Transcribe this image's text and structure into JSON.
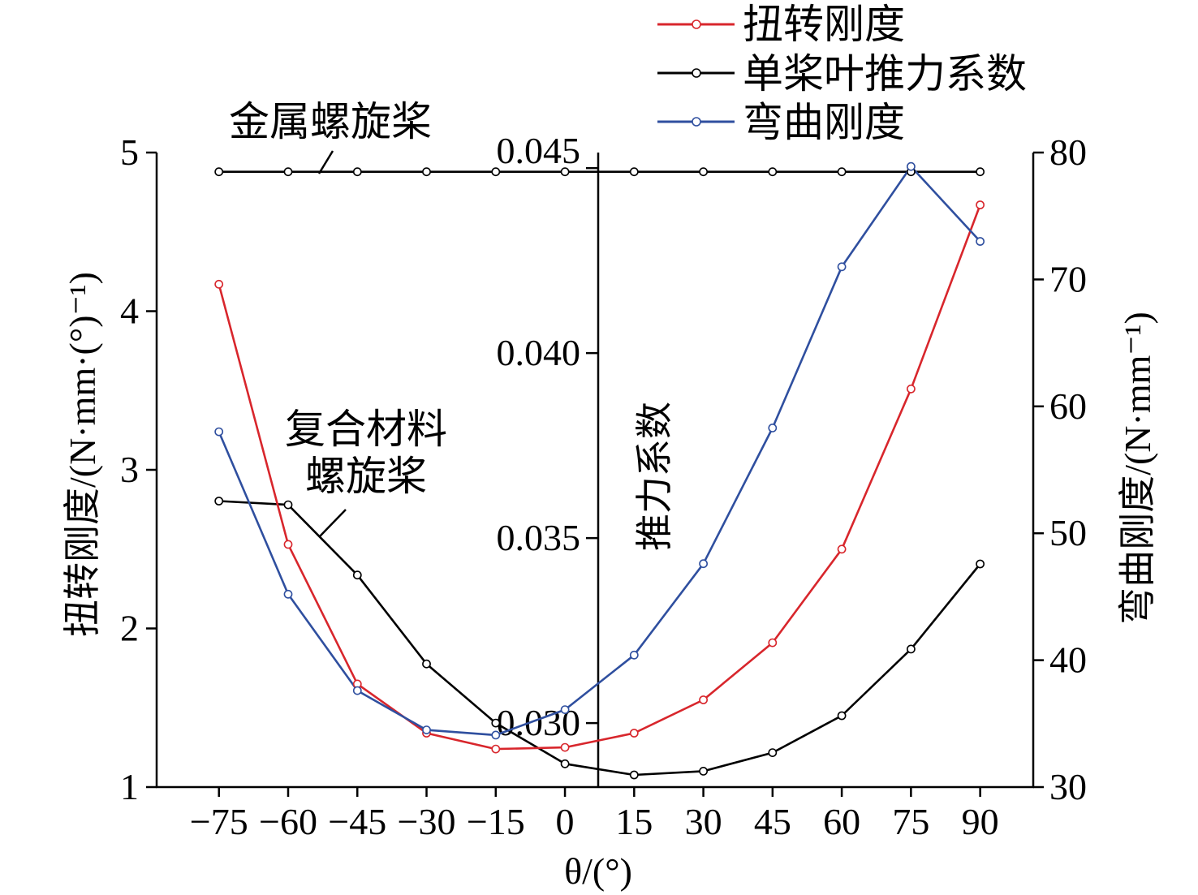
{
  "chart_data": {
    "type": "line",
    "x": [
      -75,
      -60,
      -45,
      -30,
      -15,
      0,
      15,
      30,
      45,
      60,
      75,
      90
    ],
    "xlim": [
      -88.5,
      101.5
    ],
    "xticks": [
      -75,
      -60,
      -45,
      -30,
      -15,
      0,
      15,
      30,
      45,
      60,
      75,
      90
    ],
    "xtick_labels": [
      "−75",
      "−60",
      "−45",
      "−30",
      "−15",
      "0",
      "15",
      "30",
      "45",
      "60",
      "75",
      "90"
    ],
    "xlabel": "θ/(°)",
    "y_axes": {
      "left": {
        "label": "扭转刚度/(N·mm·(°)⁻¹)",
        "ylim": [
          1,
          5
        ],
        "ticks": [
          1,
          2,
          3,
          4,
          5
        ],
        "tick_labels": [
          "1",
          "2",
          "3",
          "4",
          "5"
        ]
      },
      "middle": {
        "label": "推力系数",
        "ylim": [
          0.02827,
          0.04542
        ],
        "ticks": [
          0.03,
          0.035,
          0.04,
          0.045
        ],
        "tick_labels": [
          "0.030",
          "0.035",
          "0.040",
          "0.045"
        ]
      },
      "right": {
        "label": "弯曲刚度/(N·mm⁻¹)",
        "ylim": [
          30,
          80
        ],
        "ticks": [
          30,
          40,
          50,
          60,
          70,
          80
        ],
        "tick_labels": [
          "30",
          "40",
          "50",
          "60",
          "70",
          "80"
        ]
      }
    },
    "series": [
      {
        "name": "扭转刚度",
        "axis": "left",
        "color": "#d8262c",
        "values": [
          4.17,
          2.53,
          1.65,
          1.34,
          1.24,
          1.25,
          1.34,
          1.55,
          1.91,
          2.5,
          3.51,
          4.67
        ]
      },
      {
        "name": "单桨叶推力系数",
        "axis": "middle",
        "color": "#000000",
        "label": [
          "复合材料",
          "螺旋桨"
        ],
        "values": [
          0.036,
          0.0359,
          0.034,
          0.0316,
          0.03,
          0.0289,
          0.0286,
          0.0287,
          0.0292,
          0.0302,
          0.032,
          0.0343
        ]
      },
      {
        "name": "弯曲刚度",
        "axis": "right",
        "color": "#2f4f9f",
        "values": [
          58.0,
          45.2,
          37.6,
          34.5,
          34.1,
          36.1,
          40.4,
          47.6,
          58.3,
          71.0,
          78.9,
          73.0
        ]
      },
      {
        "axis": "middle",
        "color": "#000000",
        "label": [
          "金属螺旋桨"
        ],
        "values": [
          0.0449,
          0.0449,
          0.0449,
          0.0449,
          0.0449,
          0.0449,
          0.0449,
          0.0449,
          0.0449,
          0.0449,
          0.0449,
          0.0449
        ]
      }
    ],
    "legend_position": "top-right",
    "grid": false
  }
}
